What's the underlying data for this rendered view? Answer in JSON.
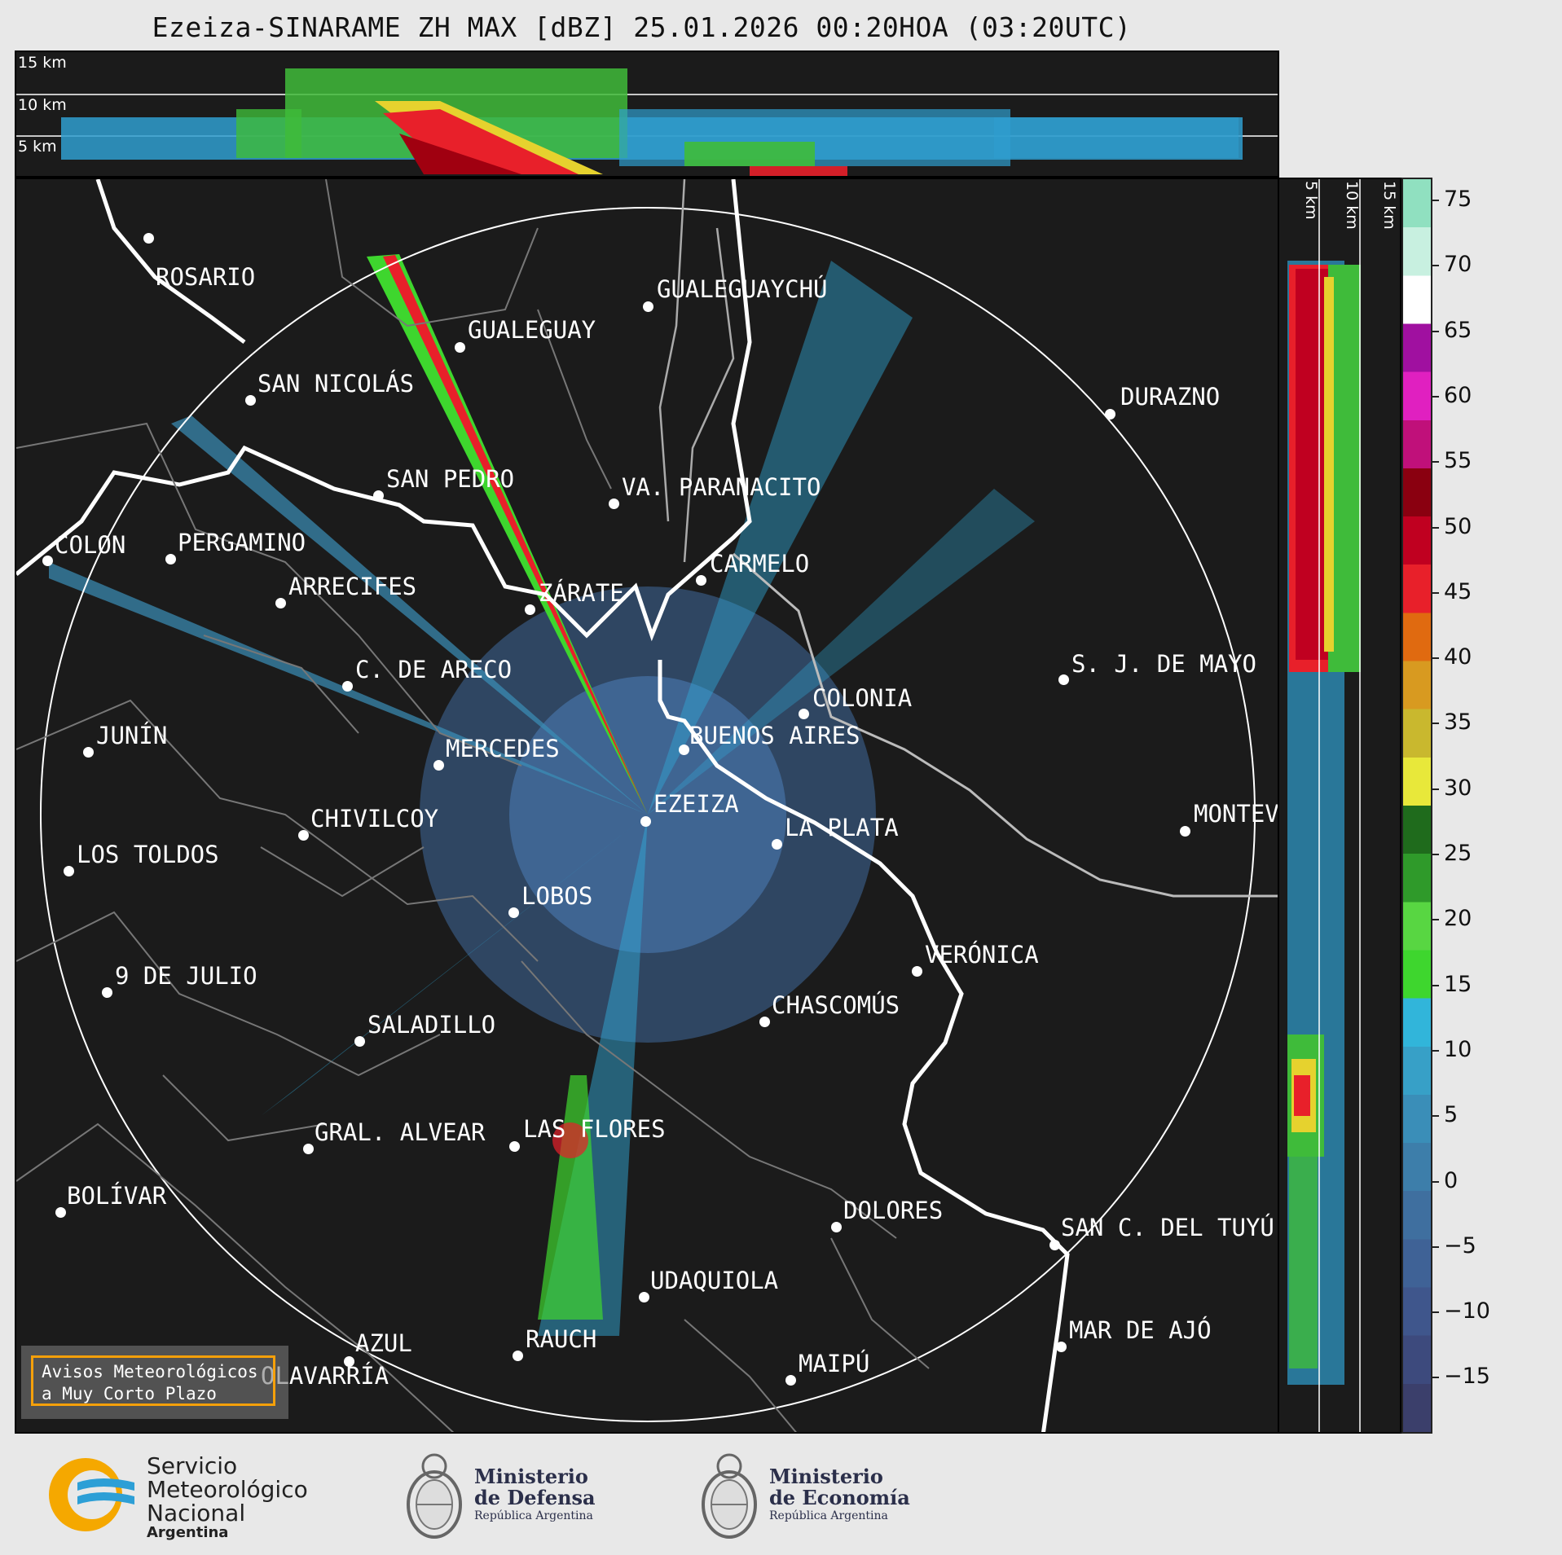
{
  "title": "Ezeiza-SINARAME ZH MAX [dBZ] 25.01.2026 00:20HOA (03:20UTC)",
  "top_panel": {
    "height_labels": [
      "15 km",
      "10 km",
      "5 km"
    ]
  },
  "side_panel": {
    "height_labels": [
      "5 km",
      "10 km",
      "15 km"
    ]
  },
  "cities": [
    "ROSARIO",
    "GUALEGUAYCHÚ",
    "GUALEGUAY",
    "SAN NICOLÁS",
    "DURAZNO",
    "SAN PEDRO",
    "VA. PARANACITO",
    "COLON",
    "PERGAMINO",
    "CARMELO",
    "ARRECIFES",
    "ZÁRATE",
    "S. J. DE MAYO",
    "C. DE ARECO",
    "COLONIA",
    "JUNÍN",
    "BUENOS AIRES",
    "MERCEDES",
    "EZEIZA",
    "MONTEVIDEO",
    "CHIVILCOY",
    "LA PLATA",
    "LOS TOLDOS",
    "LOBOS",
    "VERÓNICA",
    "9 DE JULIO",
    "CHASCOMÚS",
    "SALADILLO",
    "GRAL. ALVEAR",
    "LAS FLORES",
    "BOLÍVAR",
    "DOLORES",
    "SAN C. DEL TUYÚ",
    "UDAQUIOLA",
    "AZUL",
    "MAR DE AJÓ",
    "RAUCH",
    "OLAVARRÍA",
    "MAIPÚ"
  ],
  "colorbar": {
    "unit": "dBZ",
    "ticks": [
      "75",
      "70",
      "65",
      "60",
      "55",
      "50",
      "45",
      "40",
      "35",
      "30",
      "25",
      "20",
      "15",
      "10",
      "5",
      "0",
      "−5",
      "−10",
      "−15"
    ],
    "colors": [
      "#3b3f6b",
      "#3d4a7d",
      "#3f568c",
      "#3f6296",
      "#3f6f9f",
      "#3d7eaa",
      "#3a8eb8",
      "#37a0c7",
      "#31b5da",
      "#3ed62e",
      "#58d642",
      "#2f9a2a",
      "#1f6b1c",
      "#e8e83a",
      "#c9b82e",
      "#d89a20",
      "#e06a10",
      "#e8202a",
      "#c00020",
      "#8a0010",
      "#c0107a",
      "#e020c0",
      "#a010a0",
      "#ffffff",
      "#c8f0e0",
      "#90e0c0"
    ],
    "accent": "#f5a00a"
  },
  "notice": {
    "line1": "Avisos Meteorológicos",
    "line2": "a Muy Corto Plazo"
  },
  "logos": {
    "smn": {
      "line1": "Servicio",
      "line2": "Meteorológico",
      "line3": "Nacional",
      "line4": "Argentina"
    },
    "defensa": {
      "line1": "Ministerio",
      "line2": "de Defensa",
      "line3": "República Argentina"
    },
    "economia": {
      "line1": "Ministerio",
      "line2": "de Economía",
      "line3": "República Argentina"
    }
  }
}
